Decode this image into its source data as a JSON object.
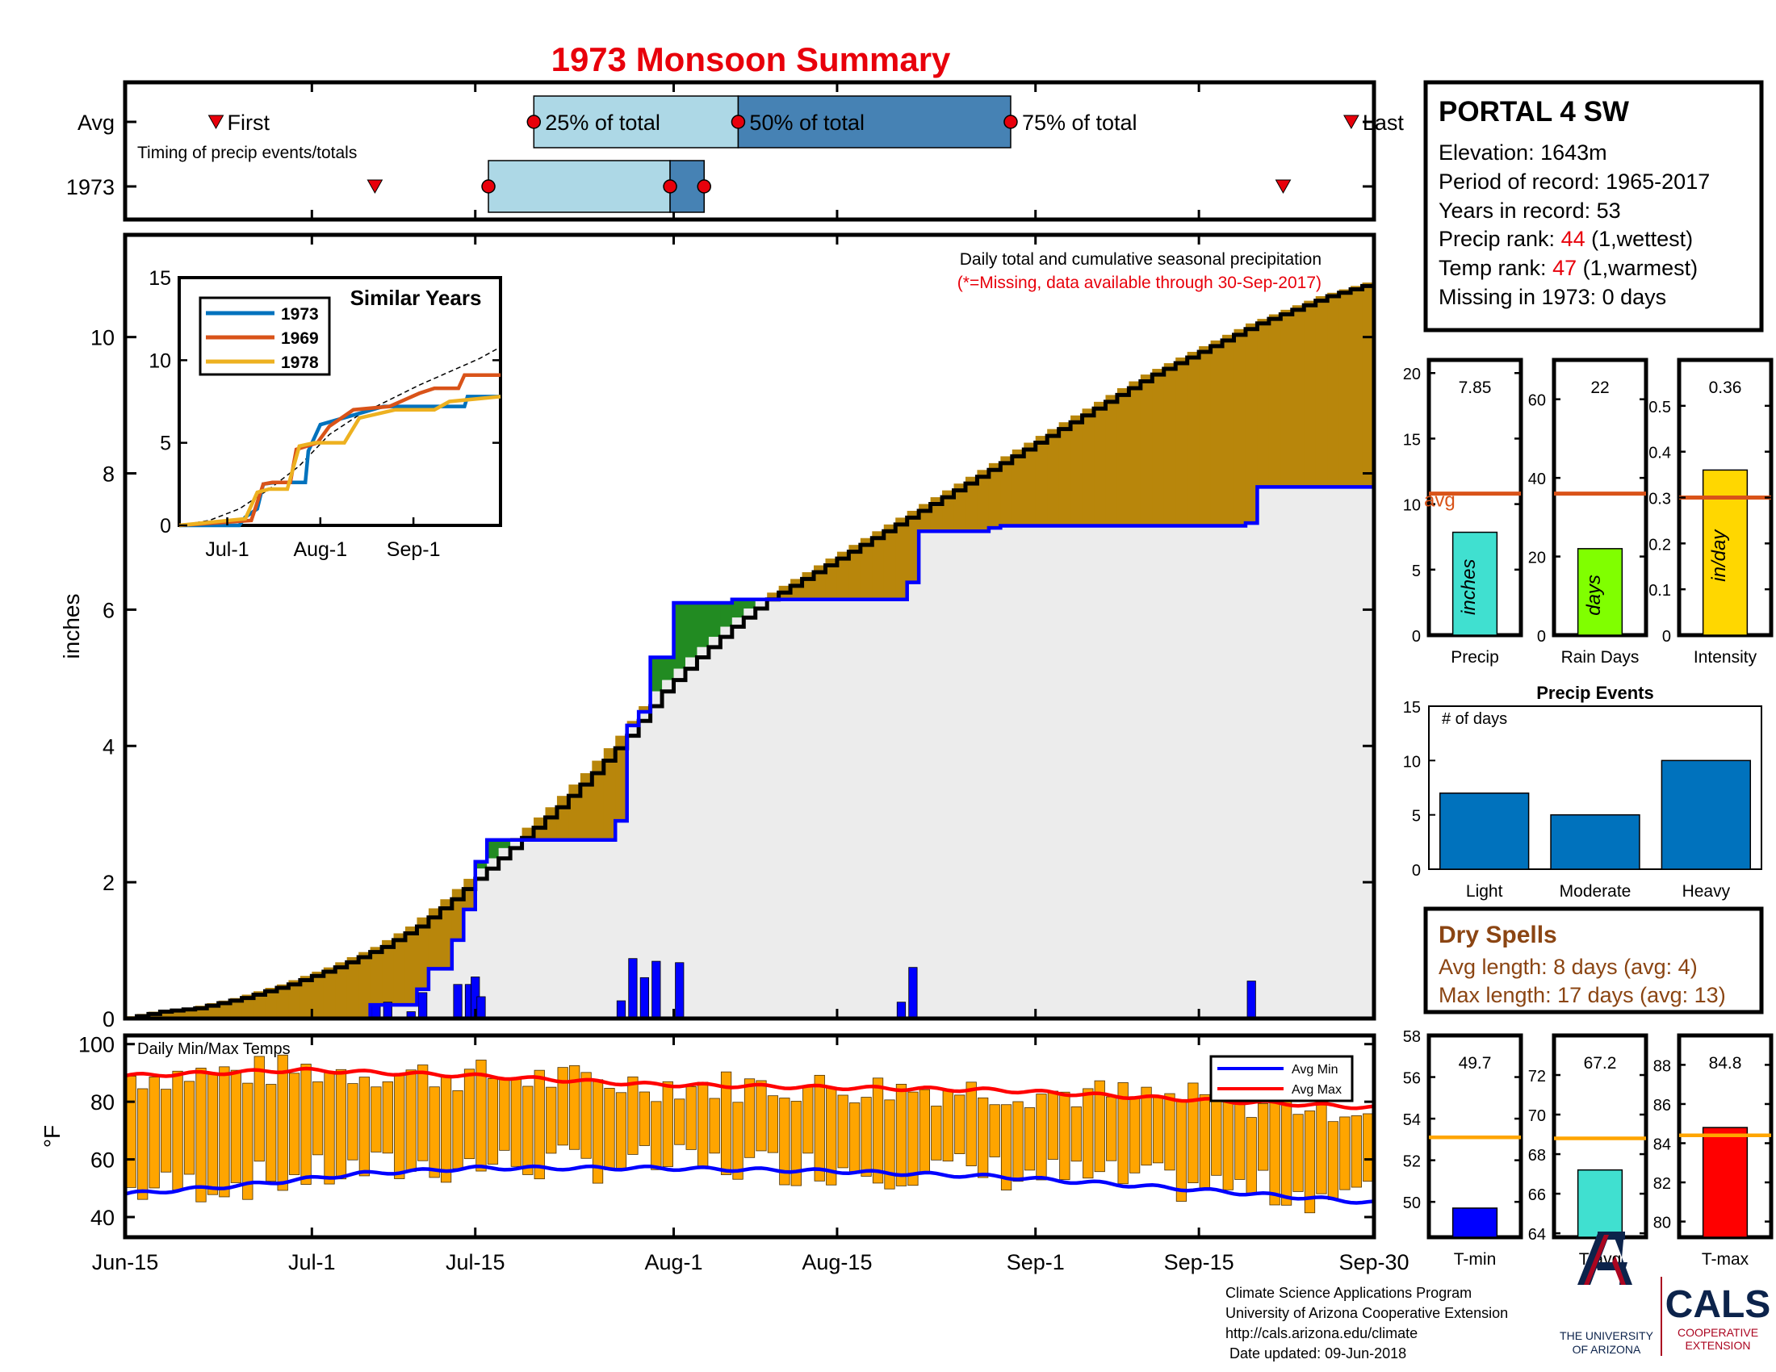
{
  "page": {
    "title": "1973 Monsoon Summary",
    "footer_lines": [
      "Climate Science Applications Program",
      "University of Arizona Cooperative Extension",
      "http://cals.arizona.edu/climate",
      " Date updated: 09-Jun-2018"
    ],
    "logo_ua": {
      "line1": "THE UNIVERSITY",
      "line2": "OF ARIZONA"
    },
    "logo_cals": {
      "word": "CALS",
      "line1": "COOPERATIVE",
      "line2": "EXTENSION"
    },
    "colors": {
      "title": "#e8000b",
      "cum_fill": "#b8860b",
      "green_fill": "#228b22",
      "avg_fill": "#e8e8e8",
      "blue": "#0000ff",
      "orange": "#ffa500",
      "red": "#ff0000",
      "avg_line": "#d95319"
    }
  },
  "station": {
    "name": "PORTAL 4 SW",
    "elevation": "Elevation: 1643m",
    "period": "Period of record: 1965-2017",
    "years": "Years in record: 53",
    "precip_rank_label": "Precip rank: ",
    "precip_rank_value": "44",
    "precip_rank_note": " (1,wettest)",
    "temp_rank_label": "Temp rank: ",
    "temp_rank_value": "47",
    "temp_rank_note": " (1,warmest)",
    "missing": "Missing in 1973: 0 days"
  },
  "chart_data": [
    {
      "id": "timing",
      "type": "bar",
      "rows": [
        "Avg",
        "1973"
      ],
      "note": "Timing of precip events/totals",
      "avg": {
        "first": 8,
        "q25": 36,
        "q50": 54,
        "q75": 78,
        "last": 108
      },
      "year": {
        "first": 22,
        "q25": 32,
        "q50": 48,
        "q75": 51,
        "last": 102
      },
      "labels": {
        "first": "First",
        "q25": "25% of total",
        "q50": "50% of total",
        "q75": "75% of total",
        "last": "Last"
      }
    },
    {
      "id": "precip",
      "type": "area",
      "title": "Daily total and cumulative seasonal precipitation",
      "subtitle": "(*=Missing, data available through 30-Sep-2017)",
      "ylabel": "inches",
      "ylim": [
        0,
        11.5
      ],
      "yticks": [
        0,
        2,
        4,
        6,
        8,
        10
      ],
      "xlim": [
        0,
        107
      ],
      "xticks": [
        {
          "day": 0,
          "label": "Jun-15"
        },
        {
          "day": 16,
          "label": "Jul-1"
        },
        {
          "day": 30,
          "label": "Jul-15"
        },
        {
          "day": 47,
          "label": "Aug-1"
        },
        {
          "day": 61,
          "label": "Aug-15"
        },
        {
          "day": 78,
          "label": "Sep-1"
        },
        {
          "day": 92,
          "label": "Sep-15"
        },
        {
          "day": 107,
          "label": "Sep-30"
        }
      ],
      "avg_cumulative": [
        [
          0,
          0.0
        ],
        [
          3,
          0.1
        ],
        [
          6,
          0.15
        ],
        [
          10,
          0.3
        ],
        [
          14,
          0.5
        ],
        [
          18,
          0.75
        ],
        [
          22,
          1.05
        ],
        [
          25,
          1.35
        ],
        [
          28,
          1.75
        ],
        [
          31,
          2.2
        ],
        [
          34,
          2.65
        ],
        [
          37,
          3.1
        ],
        [
          40,
          3.6
        ],
        [
          43,
          4.15
        ],
        [
          46,
          4.8
        ],
        [
          49,
          5.3
        ],
        [
          52,
          5.75
        ],
        [
          55,
          6.15
        ],
        [
          58,
          6.45
        ],
        [
          61,
          6.75
        ],
        [
          64,
          7.05
        ],
        [
          67,
          7.35
        ],
        [
          70,
          7.65
        ],
        [
          73,
          7.95
        ],
        [
          76,
          8.25
        ],
        [
          79,
          8.55
        ],
        [
          82,
          8.85
        ],
        [
          85,
          9.15
        ],
        [
          88,
          9.45
        ],
        [
          91,
          9.7
        ],
        [
          94,
          9.95
        ],
        [
          97,
          10.2
        ],
        [
          100,
          10.4
        ],
        [
          103,
          10.6
        ],
        [
          107,
          10.8
        ]
      ],
      "year_cumulative": [
        [
          0,
          0.0
        ],
        [
          20,
          0.0
        ],
        [
          21,
          0.2
        ],
        [
          24,
          0.2
        ],
        [
          25,
          0.43
        ],
        [
          26,
          0.73
        ],
        [
          28,
          1.15
        ],
        [
          29,
          1.6
        ],
        [
          30,
          2.3
        ],
        [
          31,
          2.62
        ],
        [
          41,
          2.62
        ],
        [
          42,
          2.9
        ],
        [
          43,
          4.3
        ],
        [
          44,
          4.5
        ],
        [
          45,
          5.3
        ],
        [
          47,
          6.1
        ],
        [
          52,
          6.15
        ],
        [
          66,
          6.15
        ],
        [
          67,
          6.4
        ],
        [
          68,
          7.15
        ],
        [
          74,
          7.2
        ],
        [
          75,
          7.23
        ],
        [
          93,
          7.23
        ],
        [
          96,
          7.27
        ],
        [
          97,
          7.8
        ],
        [
          107,
          7.8
        ]
      ],
      "daily_bars": [
        {
          "day": 21,
          "value": 0.19
        },
        {
          "day": 22,
          "value": 0.24
        },
        {
          "day": 24,
          "value": 0.1
        },
        {
          "day": 25,
          "value": 0.38
        },
        {
          "day": 28,
          "value": 0.5
        },
        {
          "day": 29,
          "value": 0.5
        },
        {
          "day": 29.5,
          "value": 0.61
        },
        {
          "day": 30,
          "value": 0.32
        },
        {
          "day": 42,
          "value": 0.26
        },
        {
          "day": 43,
          "value": 0.88
        },
        {
          "day": 44,
          "value": 0.6
        },
        {
          "day": 45,
          "value": 0.84
        },
        {
          "day": 47,
          "value": 0.82
        },
        {
          "day": 66,
          "value": 0.24
        },
        {
          "day": 67,
          "value": 0.75
        },
        {
          "day": 96,
          "value": 0.55
        }
      ]
    },
    {
      "id": "similar",
      "type": "line",
      "title": "Similar Years",
      "ylim": [
        0,
        15
      ],
      "yticks": [
        0,
        5,
        10,
        15
      ],
      "xticks": [
        {
          "day": 16,
          "label": "Jul-1"
        },
        {
          "day": 47,
          "label": "Aug-1"
        },
        {
          "day": 78,
          "label": "Sep-1"
        }
      ],
      "series": [
        {
          "name": "1973",
          "color": "#0072bd",
          "points": [
            [
              0,
              0
            ],
            [
              20,
              0
            ],
            [
              22,
              0.5
            ],
            [
              26,
              1
            ],
            [
              28,
              2.5
            ],
            [
              32,
              2.6
            ],
            [
              42,
              2.6
            ],
            [
              43,
              4.5
            ],
            [
              47,
              6.1
            ],
            [
              68,
              7.2
            ],
            [
              95,
              7.2
            ],
            [
              96,
              7.8
            ],
            [
              107,
              7.8
            ]
          ]
        },
        {
          "name": "1969",
          "color": "#d95319",
          "points": [
            [
              0,
              0
            ],
            [
              24,
              0.3
            ],
            [
              28,
              2.5
            ],
            [
              31,
              2.6
            ],
            [
              37,
              2.6
            ],
            [
              39,
              4.6
            ],
            [
              46,
              5
            ],
            [
              50,
              6
            ],
            [
              58,
              7
            ],
            [
              70,
              7.2
            ],
            [
              80,
              8
            ],
            [
              85,
              8.3
            ],
            [
              93,
              8.3
            ],
            [
              95,
              9.1
            ],
            [
              107,
              9.1
            ]
          ]
        },
        {
          "name": "1978",
          "color": "#edb120",
          "points": [
            [
              0,
              0
            ],
            [
              22,
              0.4
            ],
            [
              26,
              2
            ],
            [
              30,
              2.2
            ],
            [
              36,
              2.2
            ],
            [
              40,
              4.8
            ],
            [
              45,
              5
            ],
            [
              55,
              5
            ],
            [
              60,
              6.5
            ],
            [
              72,
              7
            ],
            [
              85,
              7
            ],
            [
              90,
              7.5
            ],
            [
              107,
              7.8
            ]
          ]
        }
      ],
      "avg_dashed": [
        [
          0,
          0
        ],
        [
          10,
          0.3
        ],
        [
          20,
          1
        ],
        [
          30,
          2.2
        ],
        [
          40,
          3.6
        ],
        [
          50,
          5.5
        ],
        [
          60,
          6.7
        ],
        [
          70,
          7.6
        ],
        [
          80,
          8.5
        ],
        [
          90,
          9.3
        ],
        [
          100,
          10.1
        ],
        [
          107,
          10.8
        ]
      ]
    },
    {
      "id": "temps",
      "type": "bar",
      "title": "Daily Min/Max Temps",
      "ylabel": "°F",
      "ylim": [
        33,
        103
      ],
      "yticks": [
        40,
        60,
        80,
        100
      ],
      "legend": [
        "Avg Min",
        "Avg Max"
      ],
      "avg_max": [
        [
          0,
          89
        ],
        [
          15,
          91
        ],
        [
          30,
          89
        ],
        [
          45,
          86
        ],
        [
          60,
          85
        ],
        [
          75,
          84
        ],
        [
          90,
          81
        ],
        [
          107,
          78
        ]
      ],
      "avg_min": [
        [
          0,
          48
        ],
        [
          10,
          51
        ],
        [
          20,
          55
        ],
        [
          30,
          57
        ],
        [
          45,
          57
        ],
        [
          60,
          56
        ],
        [
          75,
          54
        ],
        [
          90,
          50
        ],
        [
          107,
          45
        ]
      ]
    },
    {
      "id": "seasonal",
      "type": "bar",
      "panels": [
        {
          "label": "Precip",
          "value": 7.85,
          "value_text": "7.85",
          "avg": 10.8,
          "ylim": [
            0,
            21
          ],
          "yticks": [
            0,
            5,
            10,
            15,
            20
          ],
          "color": "#40e0d0",
          "unit": "inches",
          "avg_label": "avg"
        },
        {
          "label": "Rain Days",
          "value": 22,
          "value_text": "22",
          "avg": 36,
          "ylim": [
            0,
            70
          ],
          "yticks": [
            0,
            20,
            40,
            60
          ],
          "color": "#80ff00",
          "unit": "days"
        },
        {
          "label": "Intensity",
          "value": 0.36,
          "value_text": "0.36",
          "avg": 0.3,
          "ylim": [
            0,
            0.6
          ],
          "yticks": [
            0,
            0.1,
            0.2,
            0.3,
            0.4,
            0.5
          ],
          "color": "#ffd700",
          "unit": "in/day"
        }
      ]
    },
    {
      "id": "events",
      "type": "bar",
      "title": "Precip Events",
      "ylabel_inside": "# of days",
      "categories": [
        "Light",
        "Moderate",
        "Heavy"
      ],
      "values": [
        7,
        5,
        10
      ],
      "ylim": [
        0,
        15
      ],
      "yticks": [
        0,
        5,
        10,
        15
      ],
      "color": "#0072bd"
    },
    {
      "id": "temp_summary",
      "type": "bar",
      "panels": [
        {
          "label": "T-min",
          "value": 49.7,
          "value_text": "49.7",
          "avg": 53.1,
          "ylim": [
            48.3,
            58
          ],
          "yticks": [
            50,
            52,
            54,
            56,
            58
          ],
          "color": "#0000ff"
        },
        {
          "label": "T-avg",
          "value": 67.2,
          "value_text": "67.2",
          "avg": 68.8,
          "ylim": [
            63.8,
            74
          ],
          "yticks": [
            64,
            66,
            68,
            70,
            72
          ],
          "color": "#40e0d0"
        },
        {
          "label": "T-max",
          "value": 84.8,
          "value_text": "84.8",
          "avg": 84.4,
          "ylim": [
            79.2,
            89.5
          ],
          "yticks": [
            80,
            82,
            84,
            86,
            88
          ],
          "color": "#ff0000"
        }
      ]
    }
  ],
  "dry_spells": {
    "title": "Dry Spells",
    "avg_length": "Avg length: 8 days (avg: 4)",
    "max_length": "Max length: 17 days (avg: 13)"
  }
}
